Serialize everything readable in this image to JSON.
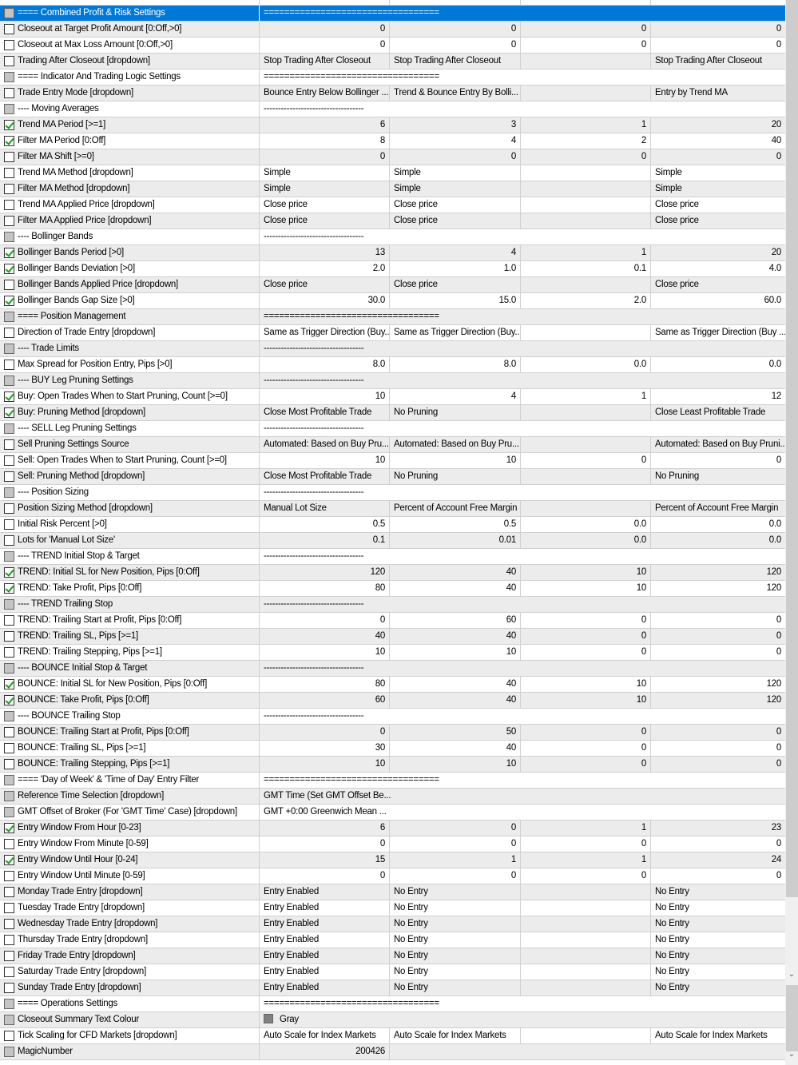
{
  "colors": {
    "selected": "#0078d7",
    "stripe": "#ececec",
    "check": "#1a9a1a",
    "swatch_gray": "#808080"
  },
  "scrollbar": {
    "down_arrow": "⌄"
  },
  "rows": [
    {
      "cb": "d",
      "name": "==== Combined Profit & Risk Settings",
      "sep": "==================================",
      "selected": true
    },
    {
      "cb": "u",
      "name": "Closeout at Target Profit Amount [0:Off,>0]",
      "v": [
        "0",
        "0",
        "0",
        "0"
      ],
      "num": true
    },
    {
      "cb": "u",
      "name": "Closeout at Max Loss Amount [0:Off,>0]",
      "v": [
        "0",
        "0",
        "0",
        "0"
      ],
      "num": true
    },
    {
      "cb": "u",
      "name": "Trading After Closeout [dropdown]",
      "v": [
        "Stop Trading After Closeout",
        "Stop Trading After Closeout",
        "",
        "Stop Trading After Closeout"
      ]
    },
    {
      "cb": "d",
      "name": "==== Indicator And Trading Logic Settings",
      "sep": "=================================="
    },
    {
      "cb": "u",
      "name": "Trade Entry Mode [dropdown]",
      "v": [
        "Bounce Entry Below Bollinger ...",
        "Trend & Bounce Entry By Bolli...",
        "",
        "Entry by Trend MA"
      ]
    },
    {
      "cb": "d",
      "name": "---- Moving Averages",
      "sep": "-----------------------------------"
    },
    {
      "cb": "c",
      "name": "Trend MA Period [>=1]",
      "v": [
        "6",
        "3",
        "1",
        "20"
      ],
      "num": true
    },
    {
      "cb": "c",
      "name": "Filter MA Period [0:Off]",
      "v": [
        "8",
        "4",
        "2",
        "40"
      ],
      "num": true
    },
    {
      "cb": "u",
      "name": "Filter MA Shift [>=0]",
      "v": [
        "0",
        "0",
        "0",
        "0"
      ],
      "num": true
    },
    {
      "cb": "u",
      "name": "Trend MA Method [dropdown]",
      "v": [
        "Simple",
        "Simple",
        "",
        "Simple"
      ]
    },
    {
      "cb": "u",
      "name": "Filter MA Method [dropdown]",
      "v": [
        "Simple",
        "Simple",
        "",
        "Simple"
      ]
    },
    {
      "cb": "u",
      "name": "Trend MA Applied Price [dropdown]",
      "v": [
        "Close price",
        "Close price",
        "",
        "Close price"
      ]
    },
    {
      "cb": "u",
      "name": "Filter MA Applied Price [dropdown]",
      "v": [
        "Close price",
        "Close price",
        "",
        "Close price"
      ]
    },
    {
      "cb": "d",
      "name": "---- Bollinger Bands",
      "sep": "-----------------------------------"
    },
    {
      "cb": "c",
      "name": "Bollinger Bands Period [>0]",
      "v": [
        "13",
        "4",
        "1",
        "20"
      ],
      "num": true
    },
    {
      "cb": "c",
      "name": "Bollinger Bands Deviation [>0]",
      "v": [
        "2.0",
        "1.0",
        "0.1",
        "4.0"
      ],
      "num": true
    },
    {
      "cb": "u",
      "name": "Bollinger Bands Applied Price [dropdown]",
      "v": [
        "Close price",
        "Close price",
        "",
        "Close price"
      ]
    },
    {
      "cb": "c",
      "name": "Bollinger Bands Gap Size [>0]",
      "v": [
        "30.0",
        "15.0",
        "2.0",
        "60.0"
      ],
      "num": true
    },
    {
      "cb": "d",
      "name": "==== Position Management",
      "sep": "=================================="
    },
    {
      "cb": "u",
      "name": "Direction of Trade Entry [dropdown]",
      "v": [
        "Same as Trigger Direction (Buy...",
        "Same as Trigger Direction (Buy...",
        "",
        "Same as Trigger Direction (Buy ..."
      ]
    },
    {
      "cb": "d",
      "name": "---- Trade Limits",
      "sep": "-----------------------------------"
    },
    {
      "cb": "u",
      "name": "Max Spread for Position Entry, Pips [>0]",
      "v": [
        "8.0",
        "8.0",
        "0.0",
        "0.0"
      ],
      "num": true
    },
    {
      "cb": "d",
      "name": "---- BUY Leg Pruning Settings",
      "sep": "-----------------------------------"
    },
    {
      "cb": "c",
      "name": "Buy: Open Trades When to Start Pruning, Count [>=0]",
      "v": [
        "10",
        "4",
        "1",
        "12"
      ],
      "num": true
    },
    {
      "cb": "c",
      "name": "Buy: Pruning Method [dropdown]",
      "v": [
        "Close Most Profitable Trade",
        "No Pruning",
        "",
        "Close Least Profitable Trade"
      ]
    },
    {
      "cb": "d",
      "name": "---- SELL Leg Pruning Settings",
      "sep": "-----------------------------------"
    },
    {
      "cb": "u",
      "name": "Sell Pruning Settings Source",
      "v": [
        "Automated: Based on Buy Pru...",
        "Automated: Based on Buy Pru...",
        "",
        "Automated: Based on Buy Pruni..."
      ]
    },
    {
      "cb": "u",
      "name": "Sell: Open Trades When to Start Pruning, Count [>=0]",
      "v": [
        "10",
        "10",
        "0",
        "0"
      ],
      "num": true
    },
    {
      "cb": "u",
      "name": "Sell: Pruning Method [dropdown]",
      "v": [
        "Close Most Profitable Trade",
        "No Pruning",
        "",
        "No Pruning"
      ]
    },
    {
      "cb": "d",
      "name": "---- Position Sizing",
      "sep": "-----------------------------------"
    },
    {
      "cb": "u",
      "name": "Position Sizing Method [dropdown]",
      "v": [
        "Manual Lot Size",
        "Percent of Account Free Margin",
        "",
        "Percent of Account Free Margin"
      ]
    },
    {
      "cb": "u",
      "name": "Initial Risk Percent [>0]",
      "v": [
        "0.5",
        "0.5",
        "0.0",
        "0.0"
      ],
      "num": true
    },
    {
      "cb": "u",
      "name": "Lots for 'Manual Lot Size'",
      "v": [
        "0.1",
        "0.01",
        "0.0",
        "0.0"
      ],
      "num": true
    },
    {
      "cb": "d",
      "name": "---- TREND Initial Stop & Target",
      "sep": "-----------------------------------"
    },
    {
      "cb": "c",
      "name": "TREND: Initial SL for New Position, Pips [0:Off]",
      "v": [
        "120",
        "40",
        "10",
        "120"
      ],
      "num": true
    },
    {
      "cb": "c",
      "name": "TREND: Take Profit, Pips [0:Off]",
      "v": [
        "80",
        "40",
        "10",
        "120"
      ],
      "num": true
    },
    {
      "cb": "d",
      "name": "---- TREND Trailing Stop",
      "sep": "-----------------------------------"
    },
    {
      "cb": "u",
      "name": "TREND: Trailing Start at Profit, Pips [0:Off]",
      "v": [
        "0",
        "60",
        "0",
        "0"
      ],
      "num": true
    },
    {
      "cb": "u",
      "name": "TREND: Trailing SL, Pips [>=1]",
      "v": [
        "40",
        "40",
        "0",
        "0"
      ],
      "num": true
    },
    {
      "cb": "u",
      "name": "TREND: Trailing Stepping, Pips [>=1]",
      "v": [
        "10",
        "10",
        "0",
        "0"
      ],
      "num": true
    },
    {
      "cb": "d",
      "name": "---- BOUNCE Initial Stop & Target",
      "sep": "-----------------------------------"
    },
    {
      "cb": "c",
      "name": "BOUNCE: Initial SL for New Position, Pips [0:Off]",
      "v": [
        "80",
        "40",
        "10",
        "120"
      ],
      "num": true
    },
    {
      "cb": "c",
      "name": "BOUNCE: Take Profit, Pips [0:Off]",
      "v": [
        "60",
        "40",
        "10",
        "120"
      ],
      "num": true
    },
    {
      "cb": "d",
      "name": "---- BOUNCE Trailing Stop",
      "sep": "-----------------------------------"
    },
    {
      "cb": "u",
      "name": "BOUNCE: Trailing Start at Profit, Pips [0:Off]",
      "v": [
        "0",
        "50",
        "0",
        "0"
      ],
      "num": true
    },
    {
      "cb": "u",
      "name": "BOUNCE: Trailing SL, Pips [>=1]",
      "v": [
        "30",
        "40",
        "0",
        "0"
      ],
      "num": true
    },
    {
      "cb": "u",
      "name": "BOUNCE: Trailing Stepping, Pips [>=1]",
      "v": [
        "10",
        "10",
        "0",
        "0"
      ],
      "num": true
    },
    {
      "cb": "d",
      "name": "==== 'Day of Week' & 'Time of Day' Entry Filter",
      "sep": "=================================="
    },
    {
      "cb": "d",
      "name": "Reference Time Selection [dropdown]",
      "sep": "GMT Time (Set GMT Offset Be..."
    },
    {
      "cb": "d",
      "name": "GMT Offset of Broker (For 'GMT Time' Case) [dropdown]",
      "sep": "GMT +0:00  Greenwich Mean ..."
    },
    {
      "cb": "c",
      "name": "Entry Window From Hour [0-23]",
      "v": [
        "6",
        "0",
        "1",
        "23"
      ],
      "num": true
    },
    {
      "cb": "u",
      "name": "Entry Window From Minute [0-59]",
      "v": [
        "0",
        "0",
        "0",
        "0"
      ],
      "num": true
    },
    {
      "cb": "c",
      "name": "Entry Window Until Hour [0-24]",
      "v": [
        "15",
        "1",
        "1",
        "24"
      ],
      "num": true
    },
    {
      "cb": "u",
      "name": "Entry Window Until Minute [0-59]",
      "v": [
        "0",
        "0",
        "0",
        "0"
      ],
      "num": true
    },
    {
      "cb": "u",
      "name": "Monday Trade Entry [dropdown]",
      "v": [
        "Entry Enabled",
        "No Entry",
        "",
        "No Entry"
      ]
    },
    {
      "cb": "u",
      "name": "Tuesday Trade Entry [dropdown]",
      "v": [
        "Entry Enabled",
        "No Entry",
        "",
        "No Entry"
      ]
    },
    {
      "cb": "u",
      "name": "Wednesday Trade Entry [dropdown]",
      "v": [
        "Entry Enabled",
        "No Entry",
        "",
        "No Entry"
      ]
    },
    {
      "cb": "u",
      "name": "Thursday Trade Entry [dropdown]",
      "v": [
        "Entry Enabled",
        "No Entry",
        "",
        "No Entry"
      ]
    },
    {
      "cb": "u",
      "name": "Friday Trade Entry [dropdown]",
      "v": [
        "Entry Enabled",
        "No Entry",
        "",
        "No Entry"
      ]
    },
    {
      "cb": "u",
      "name": "Saturday Trade Entry [dropdown]",
      "v": [
        "Entry Enabled",
        "No Entry",
        "",
        "No Entry"
      ]
    },
    {
      "cb": "u",
      "name": "Sunday Trade Entry [dropdown]",
      "v": [
        "Entry Enabled",
        "No Entry",
        "",
        "No Entry"
      ]
    },
    {
      "cb": "d",
      "name": "==== Operations Settings",
      "sep": "=================================="
    },
    {
      "cb": "d",
      "name": "Closeout Summary Text Colour",
      "sep": "Gray",
      "swatch": true
    },
    {
      "cb": "u",
      "name": "Tick Scaling for CFD Markets [dropdown]",
      "v": [
        "Auto Scale for Index Markets",
        "Auto Scale for Index Markets",
        "",
        "Auto Scale for Index Markets"
      ]
    },
    {
      "cb": "d",
      "name": "MagicNumber",
      "single_num": "200426"
    }
  ]
}
